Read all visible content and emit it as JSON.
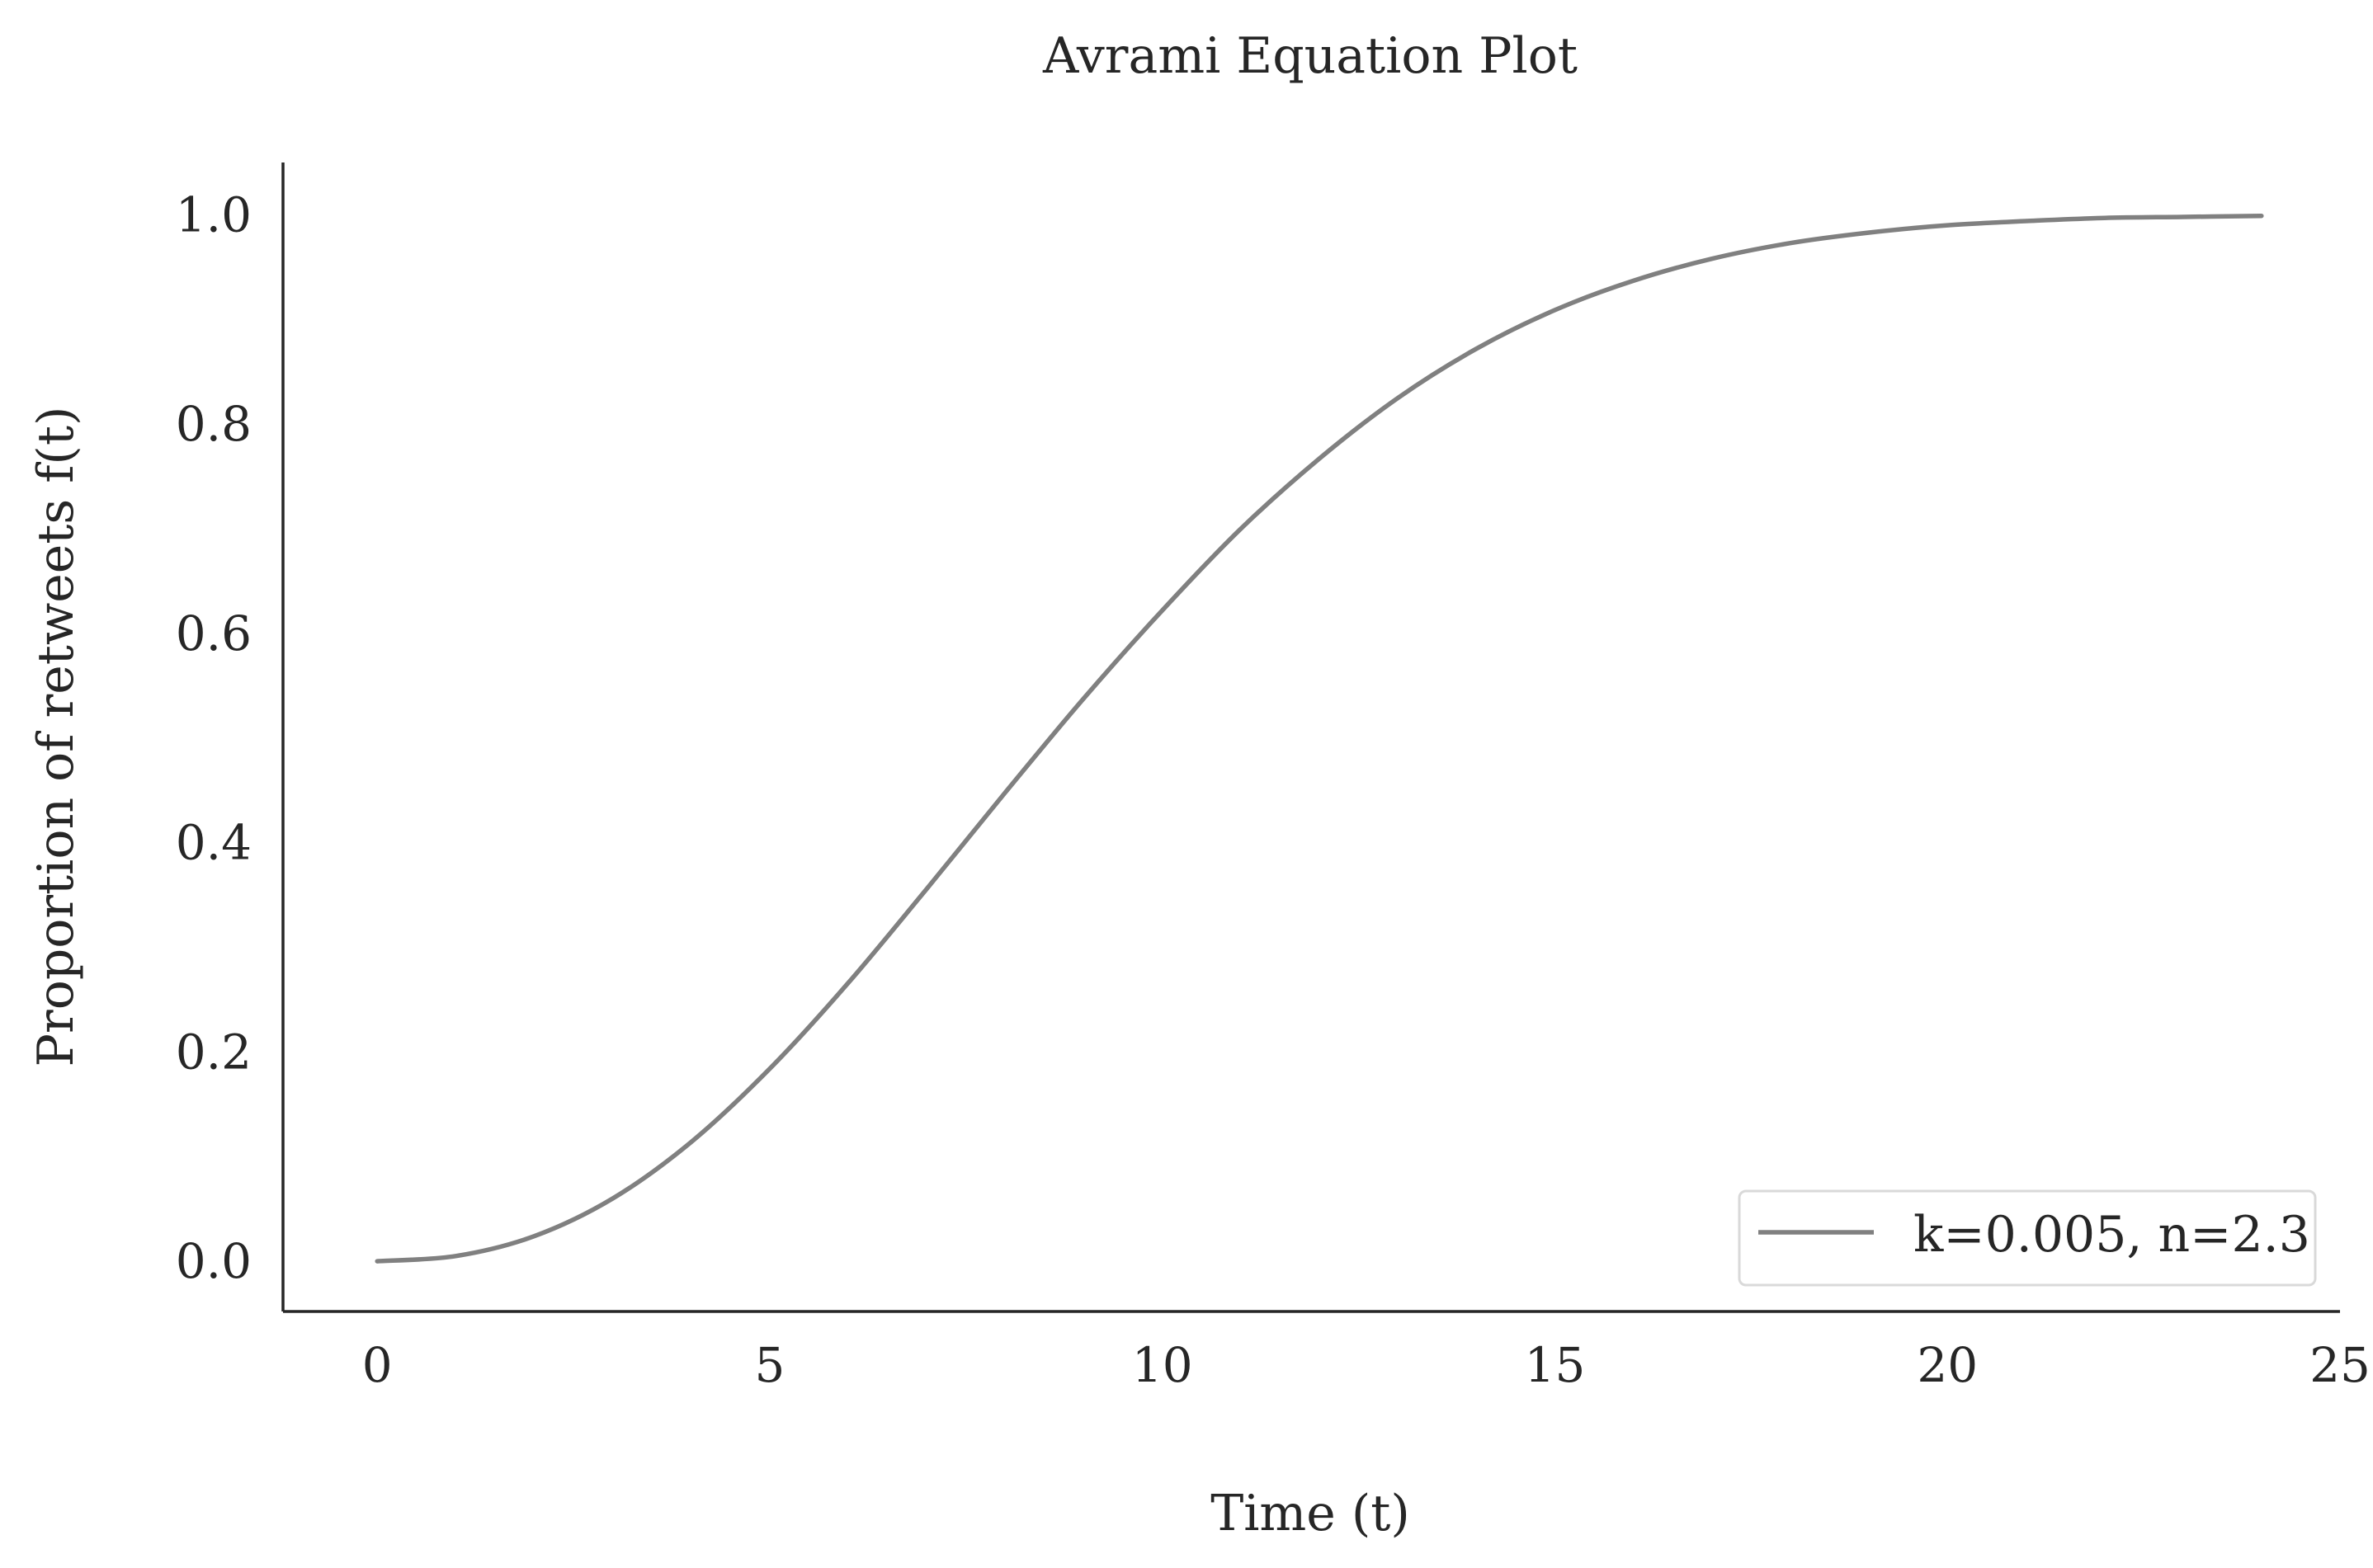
{
  "chart_data": {
    "type": "line",
    "title": "Avrami Equation Plot",
    "xlabel": "Time (t)",
    "ylabel": "Proportion of retweets f(t)",
    "xlim": [
      -1.2,
      25
    ],
    "ylim": [
      -0.048,
      1.05
    ],
    "x_ticks": [
      0,
      5,
      10,
      15,
      20,
      25
    ],
    "x_tick_labels": [
      "0",
      "5",
      "10",
      "15",
      "20",
      "25"
    ],
    "y_ticks": [
      0.0,
      0.2,
      0.4,
      0.6,
      0.8,
      1.0
    ],
    "y_tick_labels": [
      "0.0",
      "0.2",
      "0.4",
      "0.6",
      "0.8",
      "1.0"
    ],
    "grid": false,
    "legend_position": "bottom-right",
    "series": [
      {
        "name": "k=0.005, n=2.3",
        "color": "#808080",
        "x": [
          0,
          1,
          2,
          3,
          4,
          5,
          6,
          7,
          8,
          9,
          10,
          11,
          12,
          13,
          14,
          15,
          16,
          17,
          18,
          19,
          20,
          21,
          22,
          23,
          24
        ],
        "y": [
          0.0,
          0.005,
          0.024,
          0.06,
          0.114,
          0.184,
          0.266,
          0.356,
          0.448,
          0.538,
          0.622,
          0.7,
          0.767,
          0.825,
          0.872,
          0.909,
          0.937,
          0.958,
          0.973,
          0.983,
          0.99,
          0.994,
          0.997,
          0.998,
          0.999
        ]
      }
    ]
  }
}
